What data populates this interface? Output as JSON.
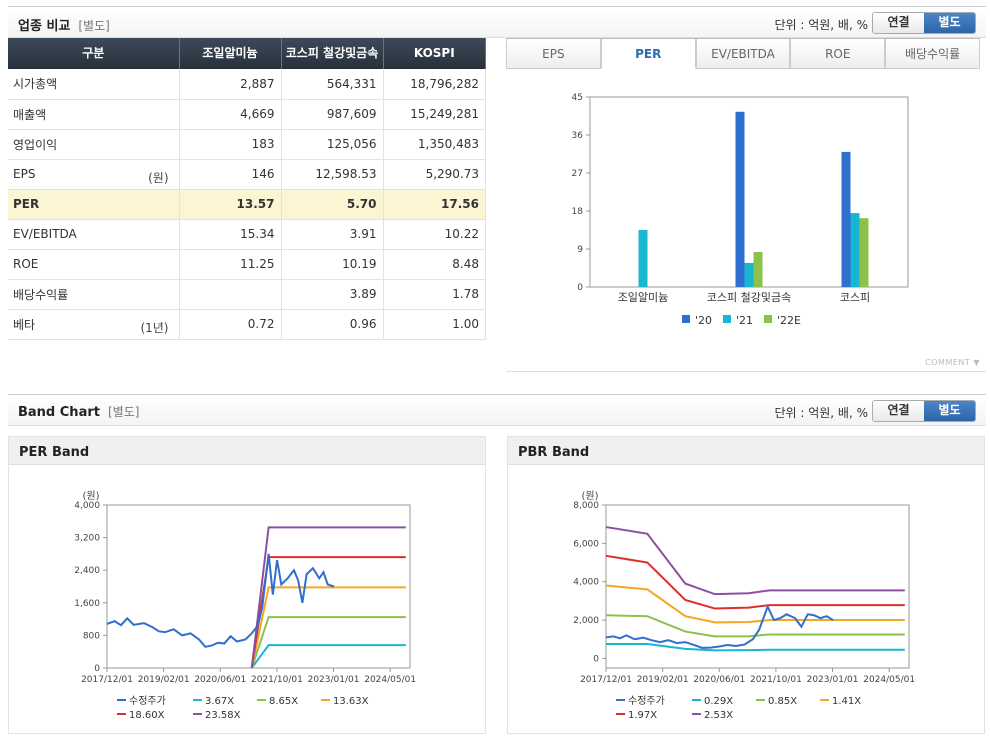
{
  "comparison": {
    "title": "업종 비교",
    "tag": "[별도]",
    "unit": "단위 : 억원, 배, %",
    "toggle": [
      "연결",
      "별도"
    ],
    "columns": [
      "구분",
      "조일알미늄",
      "코스피 철강및금속",
      "KOSPI"
    ],
    "rows": [
      {
        "label": "시가총액",
        "sub": "",
        "values": [
          "2,887",
          "564,331",
          "18,796,282"
        ]
      },
      {
        "label": "매출액",
        "sub": "",
        "values": [
          "4,669",
          "987,609",
          "15,249,281"
        ]
      },
      {
        "label": "영업이익",
        "sub": "",
        "values": [
          "183",
          "125,056",
          "1,350,483"
        ]
      },
      {
        "label": "EPS",
        "sub": "(원)",
        "values": [
          "146",
          "12,598.53",
          "5,290.73"
        ]
      },
      {
        "label": "PER",
        "sub": "",
        "values": [
          "13.57",
          "5.70",
          "17.56"
        ]
      },
      {
        "label": "EV/EBITDA",
        "sub": "",
        "values": [
          "15.34",
          "3.91",
          "10.22"
        ]
      },
      {
        "label": "ROE",
        "sub": "",
        "values": [
          "11.25",
          "10.19",
          "8.48"
        ]
      },
      {
        "label": "배당수익률",
        "sub": "",
        "values": [
          "",
          "3.89",
          "1.78"
        ]
      },
      {
        "label": "베타",
        "sub": "(1년)",
        "values": [
          "0.72",
          "0.96",
          "1.00"
        ]
      }
    ],
    "tabs": [
      "EPS",
      "PER",
      "EV/EBITDA",
      "ROE",
      "배당수익률"
    ],
    "active_tab": "PER",
    "comment_label": "COMMENT"
  },
  "band_section": {
    "title": "Band Chart",
    "tag": "[별도]",
    "unit": "단위 : 억원, 배, %",
    "toggle": [
      "연결",
      "별도"
    ]
  },
  "colors": {
    "blue": "#2f6fcf",
    "cyan": "#17b7d0",
    "green": "#8cc24a",
    "orange": "#f5a623",
    "red": "#d9302c",
    "purple": "#8e4fa3",
    "price": "#2f6fcf"
  },
  "chart_data": [
    {
      "type": "bar",
      "title": "PER",
      "categories": [
        "조일알미늄",
        "코스피 철강및금속",
        "코스피"
      ],
      "series": [
        {
          "name": "'20",
          "values": [
            null,
            41.5,
            32
          ]
        },
        {
          "name": "'21",
          "values": [
            13.5,
            5.7,
            17.5
          ]
        },
        {
          "name": "'22E",
          "values": [
            null,
            8.3,
            16.3
          ]
        }
      ],
      "ylim": [
        0,
        45
      ],
      "yticks": [
        0,
        9,
        18,
        27,
        36,
        45
      ],
      "legend": "bottom"
    },
    {
      "type": "line",
      "title": "PER Band",
      "yunit": "(원)",
      "ylim": [
        0,
        4000
      ],
      "yticks": [
        "0",
        "800",
        "1,600",
        "2,400",
        "3,200",
        "4,000"
      ],
      "xticks": [
        "2017/12/01",
        "2019/02/01",
        "2020/06/01",
        "2021/10/01",
        "2023/01/01",
        "2024/05/01"
      ],
      "price": [
        [
          2017.92,
          1080
        ],
        [
          2018.1,
          1150
        ],
        [
          2018.25,
          1050
        ],
        [
          2018.4,
          1220
        ],
        [
          2018.55,
          1060
        ],
        [
          2018.8,
          1100
        ],
        [
          2019.0,
          1000
        ],
        [
          2019.15,
          900
        ],
        [
          2019.3,
          880
        ],
        [
          2019.5,
          950
        ],
        [
          2019.7,
          800
        ],
        [
          2019.9,
          850
        ],
        [
          2020.1,
          700
        ],
        [
          2020.25,
          520
        ],
        [
          2020.4,
          550
        ],
        [
          2020.55,
          620
        ],
        [
          2020.7,
          600
        ],
        [
          2020.85,
          780
        ],
        [
          2021.0,
          650
        ],
        [
          2021.2,
          700
        ],
        [
          2021.35,
          850
        ],
        [
          2021.5,
          1050
        ],
        [
          2021.6,
          1500
        ],
        [
          2021.75,
          2800
        ],
        [
          2021.85,
          1800
        ],
        [
          2021.95,
          2650
        ],
        [
          2022.05,
          2050
        ],
        [
          2022.2,
          2200
        ],
        [
          2022.35,
          2400
        ],
        [
          2022.45,
          2150
        ],
        [
          2022.55,
          1600
        ],
        [
          2022.65,
          2300
        ],
        [
          2022.8,
          2450
        ],
        [
          2022.95,
          2200
        ],
        [
          2023.05,
          2350
        ],
        [
          2023.15,
          2050
        ],
        [
          2023.3,
          2000
        ]
      ],
      "band_start": [
        2021.35,
        0
      ],
      "bands": [
        {
          "name": "3.67X",
          "value": 560
        },
        {
          "name": "8.65X",
          "value": 1250
        },
        {
          "name": "13.63X",
          "value": 1980
        },
        {
          "name": "18.60X",
          "value": 2720
        },
        {
          "name": "23.58X",
          "value": 3450
        }
      ],
      "legend": [
        "수정주가",
        "3.67X",
        "8.65X",
        "13.63X",
        "18.60X",
        "23.58X"
      ]
    },
    {
      "type": "line",
      "title": "PBR Band",
      "yunit": "(원)",
      "ylim": [
        -500,
        8000
      ],
      "yticks": [
        "0",
        "2,000",
        "4,000",
        "6,000",
        "8,000"
      ],
      "xticks": [
        "2017/12/01",
        "2019/02/01",
        "2020/06/01",
        "2021/10/01",
        "2023/01/01",
        "2024/05/01"
      ],
      "price": [
        [
          2017.92,
          1100
        ],
        [
          2018.1,
          1150
        ],
        [
          2018.25,
          1050
        ],
        [
          2018.4,
          1200
        ],
        [
          2018.6,
          1000
        ],
        [
          2018.8,
          1080
        ],
        [
          2019.0,
          950
        ],
        [
          2019.2,
          850
        ],
        [
          2019.4,
          950
        ],
        [
          2019.6,
          800
        ],
        [
          2019.8,
          850
        ],
        [
          2020.0,
          700
        ],
        [
          2020.2,
          550
        ],
        [
          2020.4,
          560
        ],
        [
          2020.6,
          620
        ],
        [
          2020.8,
          700
        ],
        [
          2021.0,
          650
        ],
        [
          2021.2,
          720
        ],
        [
          2021.4,
          1000
        ],
        [
          2021.55,
          1500
        ],
        [
          2021.75,
          2700
        ],
        [
          2021.9,
          2000
        ],
        [
          2022.05,
          2100
        ],
        [
          2022.2,
          2300
        ],
        [
          2022.4,
          2100
        ],
        [
          2022.55,
          1650
        ],
        [
          2022.7,
          2300
        ],
        [
          2022.85,
          2250
        ],
        [
          2023.0,
          2100
        ],
        [
          2023.15,
          2200
        ],
        [
          2023.3,
          2000
        ]
      ],
      "bands": [
        {
          "name": "0.29X",
          "points": [
            [
              2017.92,
              750
            ],
            [
              2018.9,
              750
            ],
            [
              2019.8,
              500
            ],
            [
              2020.5,
              420
            ],
            [
              2021.3,
              430
            ],
            [
              2021.8,
              450
            ],
            [
              2025.0,
              450
            ]
          ]
        },
        {
          "name": "0.85X",
          "points": [
            [
              2017.92,
              2250
            ],
            [
              2018.9,
              2200
            ],
            [
              2019.8,
              1400
            ],
            [
              2020.5,
              1150
            ],
            [
              2021.3,
              1150
            ],
            [
              2021.8,
              1250
            ],
            [
              2025.0,
              1250
            ]
          ]
        },
        {
          "name": "1.41X",
          "points": [
            [
              2017.92,
              3800
            ],
            [
              2018.9,
              3600
            ],
            [
              2019.8,
              2200
            ],
            [
              2020.5,
              1880
            ],
            [
              2021.3,
              1900
            ],
            [
              2021.8,
              2000
            ],
            [
              2025.0,
              2000
            ]
          ]
        },
        {
          "name": "1.97X",
          "points": [
            [
              2017.92,
              5350
            ],
            [
              2018.9,
              5000
            ],
            [
              2019.8,
              3050
            ],
            [
              2020.5,
              2600
            ],
            [
              2021.3,
              2650
            ],
            [
              2021.8,
              2780
            ],
            [
              2025.0,
              2780
            ]
          ]
        },
        {
          "name": "2.53X",
          "points": [
            [
              2017.92,
              6850
            ],
            [
              2018.9,
              6500
            ],
            [
              2019.8,
              3900
            ],
            [
              2020.5,
              3350
            ],
            [
              2021.3,
              3400
            ],
            [
              2021.8,
              3550
            ],
            [
              2025.0,
              3550
            ]
          ]
        }
      ],
      "legend": [
        "수정주가",
        "0.29X",
        "0.85X",
        "1.41X",
        "1.97X",
        "2.53X"
      ]
    }
  ]
}
